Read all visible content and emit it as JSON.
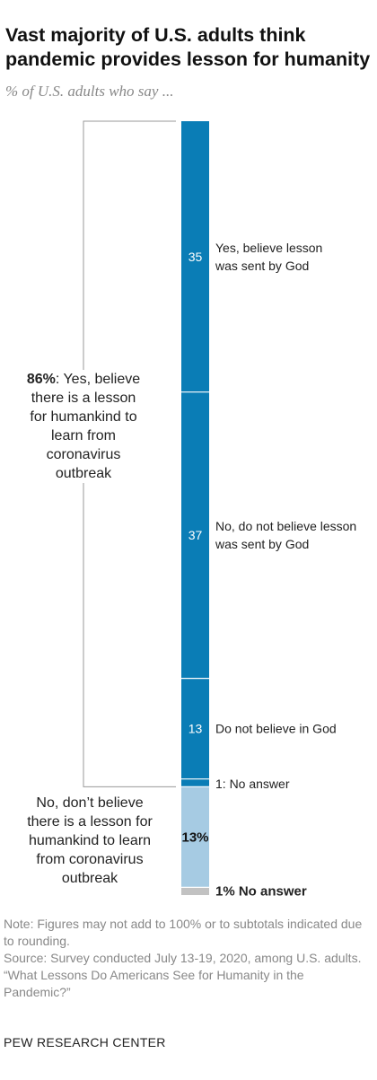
{
  "title": "Vast majority of U.S. adults think\npandemic provides lesson for humanity",
  "subtitle": "% of U.S. adults who say ...",
  "chart_data": {
    "type": "bar",
    "orientation": "vertical-stacked",
    "segments": [
      {
        "value": 35,
        "label_value": "35",
        "label": "Yes, believe lesson was sent by God",
        "label_lines": [
          "Yes, believe lesson",
          "was sent by God"
        ],
        "color": "#0a7db6",
        "group": "yes"
      },
      {
        "value": 37,
        "label_value": "37",
        "label": "No, do not believe lesson was sent by God",
        "label_lines": [
          "No, do not believe lesson",
          "was sent by God"
        ],
        "color": "#0a7db6",
        "group": "yes"
      },
      {
        "value": 13,
        "label_value": "13",
        "label": "Do not believe in God",
        "label_lines": [
          "Do not believe in God"
        ],
        "color": "#0a7db6",
        "group": "yes"
      },
      {
        "value": 1,
        "label_value": "",
        "label": "1: No answer",
        "label_lines": [
          "1: No answer"
        ],
        "color": "#0a7db6",
        "group": "yes"
      },
      {
        "value": 13,
        "label_value": "13%",
        "label": "",
        "label_lines": [],
        "color": "#a6cbe3",
        "group": "no"
      },
      {
        "value": 1,
        "label_value": "",
        "label": "1% No answer",
        "label_lines": [
          "1% No answer"
        ],
        "color": "#c2c2c2",
        "group": "na"
      }
    ],
    "groups": {
      "yes": {
        "value": "86%",
        "text": "Yes, believe there is a lesson for humankind to learn from coronavirus outbreak",
        "lines": [
          "86%: Yes, believe",
          "there is a lesson",
          "for humankind to",
          "learn from",
          "coronavirus",
          "outbreak"
        ]
      },
      "no": {
        "text": "No, don't believe there is a lesson for humankind to learn from coronavirus outbreak",
        "lines": [
          "No, don’t believe",
          "there is a lesson for",
          "humankind to learn",
          "from coronavirus",
          "outbreak"
        ]
      }
    }
  },
  "notes": {
    "note": "Note: Figures may not add to 100% or to subtotals indicated due to rounding.",
    "source": "Source: Survey conducted July 13-19, 2020, among U.S. adults.",
    "report": "“What Lessons Do Americans See for Humanity in the Pandemic?”"
  },
  "org": "PEW RESEARCH CENTER"
}
